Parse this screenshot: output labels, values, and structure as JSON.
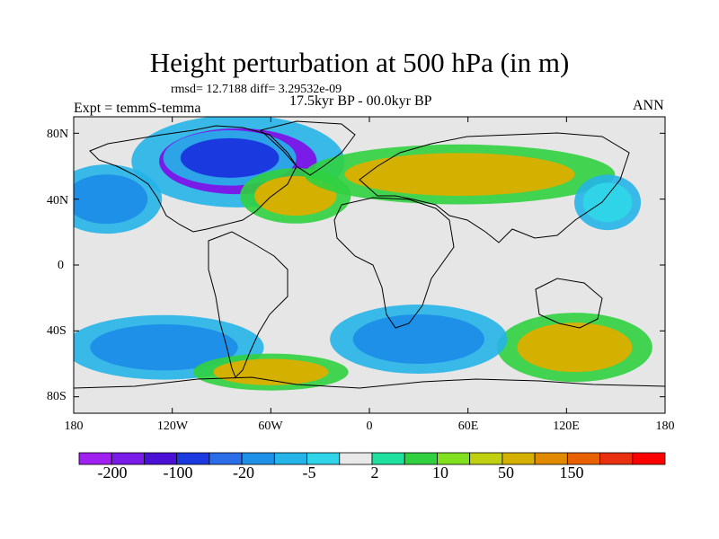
{
  "title": "Height perturbation at 500 hPa (in m)",
  "stats": "rmsd= 12.7188  diff= 3.29532e-09",
  "experiment": "Expt = temmS-temma",
  "period": "17.5kyr BP - 00.0kyr BP",
  "season": "ANN",
  "map": {
    "projection": "cylindrical-equidistant",
    "lon_range": [
      -180,
      180
    ],
    "lat_range": [
      -90,
      90
    ],
    "lat_ticks": [
      "80N",
      "40N",
      "0",
      "40S",
      "80S"
    ],
    "lon_ticks": [
      "180",
      "120W",
      "60W",
      "0",
      "60E",
      "120E",
      "180"
    ],
    "anomaly_regions": [
      {
        "name": "north-america-low",
        "lon": -80,
        "lat": 63,
        "rx": 48,
        "ry": 20,
        "level": -200
      },
      {
        "name": "north-america-low-core",
        "lon": -85,
        "lat": 65,
        "rx": 30,
        "ry": 12,
        "level": -100
      },
      {
        "name": "north-atlantic-high",
        "lon": -45,
        "lat": 42,
        "rx": 25,
        "ry": 12,
        "level": 50
      },
      {
        "name": "eurasia-high",
        "lon": 55,
        "lat": 55,
        "rx": 70,
        "ry": 13,
        "level": 50
      },
      {
        "name": "north-pacific-low",
        "lon": -160,
        "lat": 40,
        "rx": 25,
        "ry": 15,
        "level": -20
      },
      {
        "name": "east-asia-low",
        "lon": 145,
        "lat": 38,
        "rx": 15,
        "ry": 12,
        "level": -5
      },
      {
        "name": "southern-indian-high",
        "lon": 125,
        "lat": -50,
        "rx": 35,
        "ry": 15,
        "level": 50
      },
      {
        "name": "south-atlantic-low",
        "lon": 30,
        "lat": -45,
        "rx": 40,
        "ry": 15,
        "level": -20
      },
      {
        "name": "south-pacific-low",
        "lon": -125,
        "lat": -50,
        "rx": 45,
        "ry": 14,
        "level": -20
      },
      {
        "name": "antarctic-rim-high",
        "lon": -60,
        "lat": -65,
        "rx": 35,
        "ry": 8,
        "level": 50
      }
    ]
  },
  "colorbar": {
    "levels": [
      "-200",
      "-100",
      "-20",
      "-5",
      "2",
      "10",
      "50",
      "150"
    ],
    "colors": [
      "#a020f0",
      "#7a1ce8",
      "#4a10d6",
      "#1a3ae0",
      "#2b6ce8",
      "#1e90e8",
      "#25b4e8",
      "#2fd4e8",
      "#e8e8e8",
      "#20e0a0",
      "#30d040",
      "#80e020",
      "#c0d010",
      "#d4b000",
      "#e08a00",
      "#e86000",
      "#e83010",
      "#ff0000"
    ]
  }
}
